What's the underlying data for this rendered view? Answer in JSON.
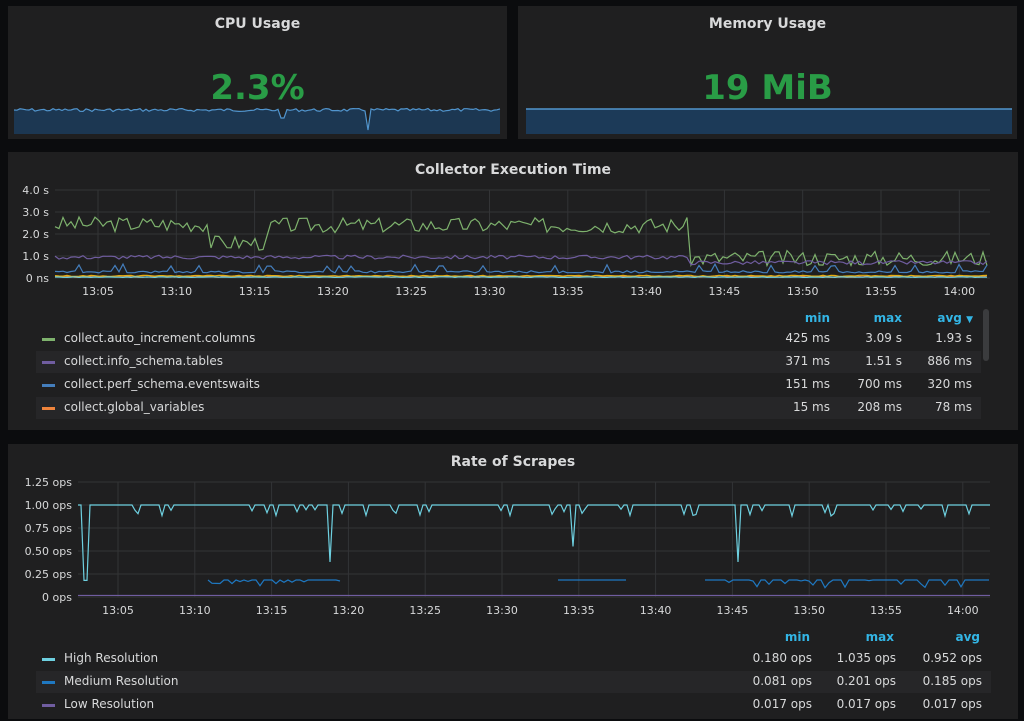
{
  "cpu": {
    "title": "CPU Usage",
    "value": "2.3%"
  },
  "memory": {
    "title": "Memory Usage",
    "value": "19 MiB"
  },
  "collector": {
    "title": "Collector Execution Time",
    "y_ticks": [
      "4.0 s",
      "3.0 s",
      "2.0 s",
      "1.0 s",
      "0 ns"
    ],
    "x_ticks": [
      "13:05",
      "13:10",
      "13:15",
      "13:20",
      "13:25",
      "13:30",
      "13:35",
      "13:40",
      "13:45",
      "13:50",
      "13:55",
      "14:00"
    ],
    "headers": {
      "min": "min",
      "max": "max",
      "avg": "avg"
    },
    "avg_sort_icon": "caret-down-icon",
    "rows": [
      {
        "name": "collect.auto_increment.columns",
        "color": "#7eb26d",
        "min": "425 ms",
        "max": "3.09 s",
        "avg": "1.93 s"
      },
      {
        "name": "collect.info_schema.tables",
        "color": "#705da0",
        "min": "371 ms",
        "max": "1.51 s",
        "avg": "886 ms"
      },
      {
        "name": "collect.perf_schema.eventswaits",
        "color": "#447ebc",
        "min": "151 ms",
        "max": "700 ms",
        "avg": "320 ms"
      },
      {
        "name": "collect.global_variables",
        "color": "#ef843c",
        "min": "15 ms",
        "max": "208 ms",
        "avg": "78 ms"
      }
    ]
  },
  "scrapes": {
    "title": "Rate of Scrapes",
    "y_ticks": [
      "1.25 ops",
      "1.00 ops",
      "0.75 ops",
      "0.50 ops",
      "0.25 ops",
      "0 ops"
    ],
    "x_ticks": [
      "13:05",
      "13:10",
      "13:15",
      "13:20",
      "13:25",
      "13:30",
      "13:35",
      "13:40",
      "13:45",
      "13:50",
      "13:55",
      "14:00"
    ],
    "headers": {
      "min": "min",
      "max": "max",
      "avg": "avg"
    },
    "rows": [
      {
        "name": "High Resolution",
        "color": "#6ed0e0",
        "min": "0.180 ops",
        "max": "1.035 ops",
        "avg": "0.952 ops"
      },
      {
        "name": "Medium Resolution",
        "color": "#1f78c1",
        "min": "0.081 ops",
        "max": "0.201 ops",
        "avg": "0.185 ops"
      },
      {
        "name": "Low Resolution",
        "color": "#705da0",
        "min": "0.017 ops",
        "max": "0.017 ops",
        "avg": "0.017 ops"
      }
    ]
  },
  "colors": {
    "stat_green": "#299c46",
    "sparkline": "#5195ce",
    "legend_header": "#33b5e5"
  }
}
